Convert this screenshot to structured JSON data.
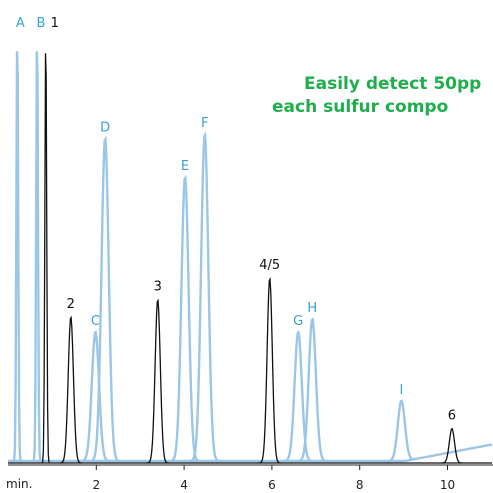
{
  "chart_data": {
    "type": "line",
    "title": "",
    "xlabel": "min.",
    "ylabel": "",
    "xlim": [
      0,
      11
    ],
    "ylim": [
      0,
      100
    ],
    "x_ticks": [
      2,
      4,
      6,
      8,
      10
    ],
    "grid": false,
    "callout": [
      "Easily detect 50pp",
      "each sulfur compo"
    ],
    "colors": {
      "blue": "#9cc6e6",
      "blue_label": "#3aa0d8",
      "black": "#111111",
      "green": "#1fae4b"
    },
    "series": [
      {
        "color": "blue",
        "peaks": [
          {
            "label": "A",
            "x": 0.2,
            "y": 100
          },
          {
            "label": "B",
            "x": 0.65,
            "y": 100
          },
          {
            "label": "C",
            "x": 1.98,
            "y": 30
          },
          {
            "label": "D",
            "x": 2.2,
            "y": 75
          },
          {
            "label": "E",
            "x": 4.02,
            "y": 66
          },
          {
            "label": "F",
            "x": 4.47,
            "y": 76
          },
          {
            "label": "G",
            "x": 6.6,
            "y": 30
          },
          {
            "label": "H",
            "x": 6.92,
            "y": 33
          },
          {
            "label": "I",
            "x": 8.95,
            "y": 14
          }
        ]
      },
      {
        "color": "black",
        "peaks": [
          {
            "label": "1",
            "x": 0.85,
            "y": 100
          },
          {
            "label": "2",
            "x": 1.42,
            "y": 34
          },
          {
            "label": "3",
            "x": 3.4,
            "y": 38
          },
          {
            "label": "4/5",
            "x": 5.95,
            "y": 43
          },
          {
            "label": "6",
            "x": 10.1,
            "y": 8
          }
        ]
      }
    ]
  }
}
